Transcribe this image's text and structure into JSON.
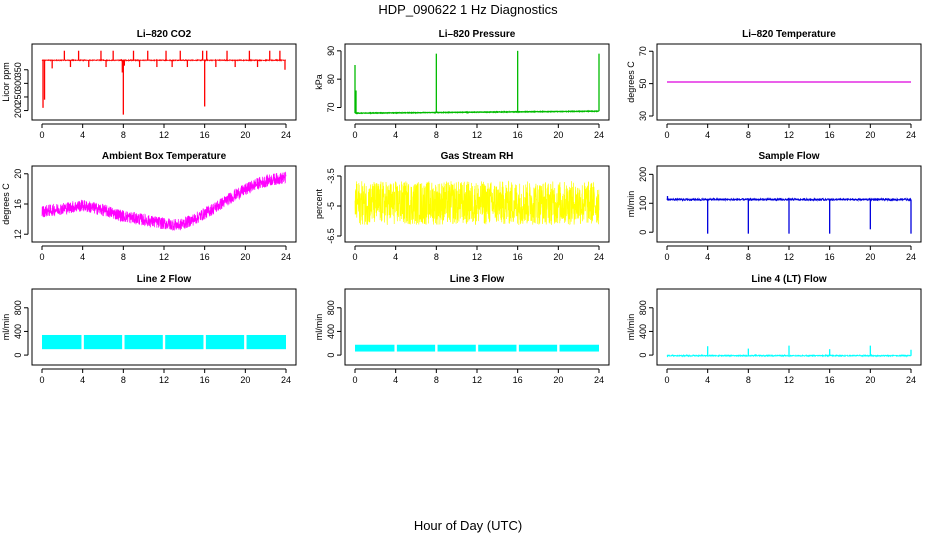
{
  "page_title": "HDP_090622  1 Hz Diagnostics",
  "x_label": "Hour of Day (UTC)",
  "chart_data": [
    {
      "type": "line",
      "title": "Li–820 CO2",
      "ylabel": "Licor ppm",
      "color": "#ff0000",
      "xlim": [
        0,
        24
      ],
      "ylim": [
        180,
        430
      ],
      "xticks": [
        0,
        4,
        8,
        12,
        16,
        20,
        24
      ],
      "yticks": [
        200,
        250,
        300,
        350
      ],
      "baseline": 385,
      "noise": 3,
      "spikes": [
        {
          "x": 0.1,
          "y": 210
        },
        {
          "x": 0.25,
          "y": 240
        },
        {
          "x": 1.0,
          "y": 355
        },
        {
          "x": 2.2,
          "y": 420
        },
        {
          "x": 2.8,
          "y": 360
        },
        {
          "x": 3.6,
          "y": 420
        },
        {
          "x": 4.6,
          "y": 360
        },
        {
          "x": 5.8,
          "y": 420
        },
        {
          "x": 6.3,
          "y": 360
        },
        {
          "x": 7.0,
          "y": 420
        },
        {
          "x": 7.9,
          "y": 340
        },
        {
          "x": 8.0,
          "y": 185
        },
        {
          "x": 8.1,
          "y": 365
        },
        {
          "x": 9.0,
          "y": 420
        },
        {
          "x": 9.6,
          "y": 360
        },
        {
          "x": 10.4,
          "y": 420
        },
        {
          "x": 11.3,
          "y": 360
        },
        {
          "x": 12.2,
          "y": 420
        },
        {
          "x": 12.8,
          "y": 360
        },
        {
          "x": 13.6,
          "y": 420
        },
        {
          "x": 14.3,
          "y": 360
        },
        {
          "x": 15.8,
          "y": 420
        },
        {
          "x": 16.0,
          "y": 215
        },
        {
          "x": 16.2,
          "y": 420
        },
        {
          "x": 17.1,
          "y": 360
        },
        {
          "x": 18.2,
          "y": 420
        },
        {
          "x": 19.0,
          "y": 360
        },
        {
          "x": 20.4,
          "y": 420
        },
        {
          "x": 21.2,
          "y": 360
        },
        {
          "x": 22.4,
          "y": 420
        },
        {
          "x": 23.4,
          "y": 420
        },
        {
          "x": 23.9,
          "y": 350
        }
      ]
    },
    {
      "type": "line",
      "title": "Li–820 Pressure",
      "ylabel": "kPa",
      "color": "#00bb00",
      "xlim": [
        0,
        24
      ],
      "ylim": [
        67,
        91
      ],
      "xticks": [
        0,
        4,
        8,
        12,
        16,
        20,
        24
      ],
      "yticks": [
        70,
        80,
        90
      ],
      "baseline_start": 68.0,
      "baseline_end": 68.7,
      "noise": 0.15,
      "spikes": [
        {
          "x": 0.0,
          "y": 85
        },
        {
          "x": 0.1,
          "y": 76
        },
        {
          "x": 8.0,
          "y": 89
        },
        {
          "x": 16.0,
          "y": 90
        },
        {
          "x": 24.0,
          "y": 89
        }
      ]
    },
    {
      "type": "line",
      "title": "Li–820 Temperature",
      "ylabel": "degrees C",
      "color": "#dd00dd",
      "xlim": [
        0,
        24
      ],
      "ylim": [
        30,
        72
      ],
      "xticks": [
        0,
        4,
        8,
        12,
        16,
        20,
        24
      ],
      "yticks": [
        30,
        50,
        70
      ],
      "baseline": 51,
      "noise": 0
    },
    {
      "type": "line",
      "title": "Ambient Box Temperature",
      "ylabel": "degrees C",
      "color": "#ff00ff",
      "xlim": [
        0,
        24
      ],
      "ylim": [
        11.5,
        20.5
      ],
      "xticks": [
        0,
        4,
        8,
        12,
        16,
        20,
        24
      ],
      "yticks": [
        12,
        16,
        20
      ],
      "trend": [
        [
          0,
          15.0
        ],
        [
          2,
          15.4
        ],
        [
          4,
          15.8
        ],
        [
          6,
          15.2
        ],
        [
          8,
          14.4
        ],
        [
          10,
          13.9
        ],
        [
          12,
          13.4
        ],
        [
          13.5,
          13.2
        ],
        [
          15,
          14.0
        ],
        [
          17,
          15.5
        ],
        [
          19,
          17.2
        ],
        [
          21,
          18.6
        ],
        [
          22.5,
          19.2
        ],
        [
          24,
          19.5
        ]
      ],
      "noise": 1.6
    },
    {
      "type": "line",
      "title": "Gas Stream RH",
      "ylabel": "percent",
      "color": "#ffff00",
      "xlim": [
        0,
        24
      ],
      "ylim": [
        -6.6,
        -3.2
      ],
      "xticks": [
        0,
        4,
        8,
        12,
        16,
        20,
        24
      ],
      "yticks": [
        -6.5,
        -5.0,
        -3.5
      ],
      "baseline": -4.85,
      "noise": 2.2
    },
    {
      "type": "line",
      "title": "Sample Flow",
      "ylabel": "ml/min",
      "color": "#0000dd",
      "xlim": [
        0,
        24
      ],
      "ylim": [
        -20,
        215
      ],
      "xticks": [
        0,
        4,
        8,
        12,
        16,
        20,
        24
      ],
      "yticks": [
        0,
        100,
        200
      ],
      "baseline": 113,
      "noise": 8,
      "spikes": [
        {
          "x": 0.05,
          "y": 125
        },
        {
          "x": 4.0,
          "y": -5
        },
        {
          "x": 8.0,
          "y": -5
        },
        {
          "x": 12.0,
          "y": -5
        },
        {
          "x": 16.0,
          "y": -5
        },
        {
          "x": 20.0,
          "y": 10
        },
        {
          "x": 24.0,
          "y": -5
        }
      ]
    },
    {
      "type": "line",
      "title": "Line 2 Flow",
      "ylabel": "ml/min",
      "color": "#00ffff",
      "xlim": [
        0,
        24
      ],
      "ylim": [
        -100,
        1050
      ],
      "xticks": [
        0,
        4,
        8,
        12,
        16,
        20,
        24
      ],
      "yticks": [
        0,
        400,
        800
      ],
      "band": [
        100,
        340
      ],
      "gaps": [
        4,
        8,
        12,
        16,
        20
      ]
    },
    {
      "type": "line",
      "title": "Line 3 Flow",
      "ylabel": "ml/min",
      "color": "#00ffff",
      "xlim": [
        0,
        24
      ],
      "ylim": [
        -100,
        1050
      ],
      "xticks": [
        0,
        4,
        8,
        12,
        16,
        20,
        24
      ],
      "yticks": [
        0,
        400,
        800
      ],
      "band": [
        60,
        175
      ],
      "gaps": [
        4,
        8,
        12,
        16,
        20
      ]
    },
    {
      "type": "line",
      "title": "Line 4 (LT) Flow",
      "ylabel": "ml/min",
      "color": "#00ffff",
      "xlim": [
        0,
        24
      ],
      "ylim": [
        -100,
        1050
      ],
      "xticks": [
        0,
        4,
        8,
        12,
        16,
        20,
        24
      ],
      "yticks": [
        0,
        400,
        800
      ],
      "baseline": -10,
      "noise": 20,
      "spikes": [
        {
          "x": 4.0,
          "y": 150
        },
        {
          "x": 8.0,
          "y": 110
        },
        {
          "x": 12.0,
          "y": 160
        },
        {
          "x": 16.0,
          "y": 100
        },
        {
          "x": 20.0,
          "y": 160
        },
        {
          "x": 24.0,
          "y": 90
        }
      ]
    }
  ]
}
